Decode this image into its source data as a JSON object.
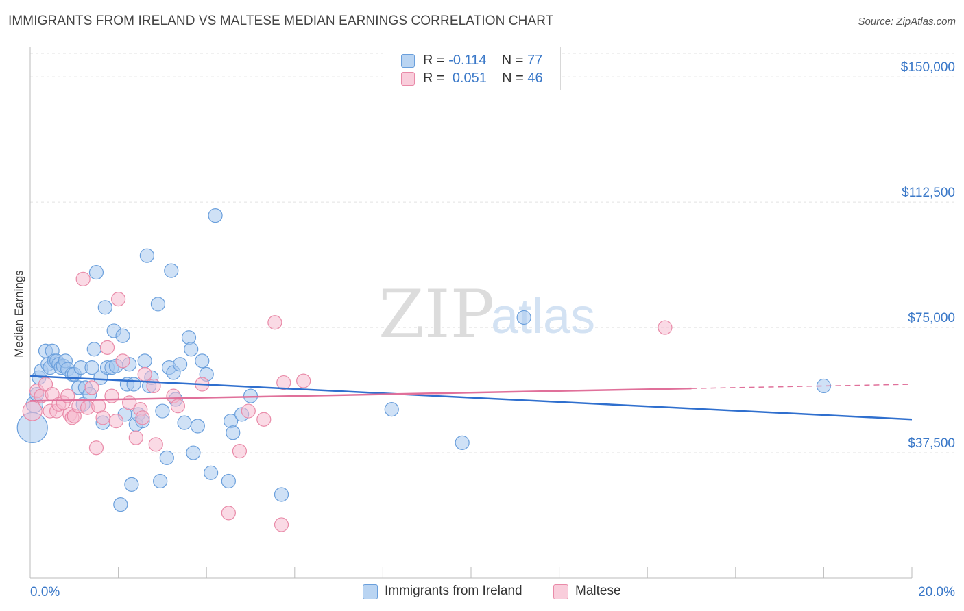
{
  "title": "IMMIGRANTS FROM IRELAND VS MALTESE MEDIAN EARNINGS CORRELATION CHART",
  "source": "Source: ZipAtlas.com",
  "watermark": {
    "zip": "ZIP",
    "atlas": "atlas"
  },
  "colors": {
    "blue_fill": "#a8c8ee",
    "blue_stroke": "#6a9fdc",
    "blue_line": "#2f6fce",
    "pink_fill": "#f6bcd0",
    "pink_stroke": "#e98aa8",
    "pink_line": "#e0709a",
    "tick_text": "#3a78c8",
    "grid": "#e2e2e2"
  },
  "legend": {
    "rows": [
      {
        "r_label": "R =",
        "r_value": "-0.114",
        "n_label": "N =",
        "n_value": "77"
      },
      {
        "r_label": "R =",
        "r_value": "0.051",
        "n_label": "N =",
        "n_value": "46"
      }
    ]
  },
  "bottom_legend": {
    "items": [
      {
        "label": "Immigrants from Ireland"
      },
      {
        "label": "Maltese"
      }
    ]
  },
  "chart_data": {
    "type": "scatter",
    "ylabel": "Median Earnings",
    "xlabel": "",
    "xlim": [
      0,
      20
    ],
    "ylim": [
      0,
      157000
    ],
    "x_tick_labels": [
      "0.0%",
      "20.0%"
    ],
    "y_ticks": [
      {
        "value": 37500,
        "label": "$37,500"
      },
      {
        "value": 75000,
        "label": "$75,000"
      },
      {
        "value": 112500,
        "label": "$112,500"
      },
      {
        "value": 150000,
        "label": "$150,000"
      }
    ],
    "grid": true,
    "legend_position": "top-center",
    "series": [
      {
        "name": "Immigrants from Ireland",
        "color": "#a8c8ee",
        "trend": {
          "x": [
            0,
            20
          ],
          "y": [
            60500,
            47500
          ],
          "solid_until": 20
        },
        "points": [
          [
            0.05,
            45000,
            22
          ],
          [
            0.1,
            52000,
            12
          ],
          [
            0.15,
            55000,
            10
          ],
          [
            0.2,
            60000,
            10
          ],
          [
            0.25,
            62000,
            10
          ],
          [
            0.35,
            68000,
            10
          ],
          [
            0.4,
            64000,
            10
          ],
          [
            0.45,
            63000,
            10
          ],
          [
            0.5,
            68000,
            10
          ],
          [
            0.55,
            65000,
            10
          ],
          [
            0.6,
            65000,
            10
          ],
          [
            0.65,
            64000,
            10
          ],
          [
            0.7,
            63000,
            10
          ],
          [
            0.75,
            63500,
            10
          ],
          [
            0.8,
            65000,
            10
          ],
          [
            0.85,
            62500,
            10
          ],
          [
            0.95,
            61000,
            10
          ],
          [
            1.0,
            61000,
            10
          ],
          [
            1.1,
            57000,
            10
          ],
          [
            1.15,
            63000,
            10
          ],
          [
            1.2,
            52000,
            10
          ],
          [
            1.25,
            57000,
            10
          ],
          [
            1.35,
            55000,
            10
          ],
          [
            1.4,
            63000,
            10
          ],
          [
            1.45,
            68500,
            10
          ],
          [
            1.5,
            91500,
            10
          ],
          [
            1.6,
            60000,
            10
          ],
          [
            1.65,
            46500,
            10
          ],
          [
            1.7,
            81000,
            10
          ],
          [
            1.75,
            63000,
            10
          ],
          [
            1.85,
            63000,
            10
          ],
          [
            1.9,
            74000,
            10
          ],
          [
            1.95,
            63500,
            10
          ],
          [
            2.05,
            22000,
            10
          ],
          [
            2.1,
            72500,
            10
          ],
          [
            2.15,
            49000,
            10
          ],
          [
            2.2,
            58000,
            10
          ],
          [
            2.25,
            64000,
            10
          ],
          [
            2.3,
            28000,
            10
          ],
          [
            2.35,
            58000,
            10
          ],
          [
            2.4,
            46000,
            10
          ],
          [
            2.45,
            49000,
            10
          ],
          [
            2.55,
            47000,
            10
          ],
          [
            2.6,
            65000,
            10
          ],
          [
            2.65,
            96500,
            10
          ],
          [
            2.7,
            57500,
            10
          ],
          [
            2.75,
            60000,
            10
          ],
          [
            2.9,
            82000,
            10
          ],
          [
            2.95,
            29000,
            10
          ],
          [
            3.0,
            50000,
            10
          ],
          [
            3.1,
            36000,
            10
          ],
          [
            3.15,
            63000,
            10
          ],
          [
            3.2,
            92000,
            10
          ],
          [
            3.25,
            61500,
            10
          ],
          [
            3.3,
            53500,
            10
          ],
          [
            3.4,
            64000,
            10
          ],
          [
            3.5,
            46500,
            10
          ],
          [
            3.6,
            72000,
            10
          ],
          [
            3.65,
            68500,
            10
          ],
          [
            3.7,
            37500,
            10
          ],
          [
            3.8,
            45500,
            10
          ],
          [
            3.9,
            65000,
            10
          ],
          [
            4.0,
            61000,
            10
          ],
          [
            4.1,
            31500,
            10
          ],
          [
            4.2,
            108500,
            10
          ],
          [
            4.5,
            29000,
            10
          ],
          [
            4.55,
            47000,
            10
          ],
          [
            4.6,
            43500,
            10
          ],
          [
            4.8,
            49000,
            10
          ],
          [
            5.0,
            54500,
            10
          ],
          [
            5.7,
            25000,
            10
          ],
          [
            8.2,
            50500,
            10
          ],
          [
            9.8,
            40500,
            10
          ],
          [
            11.2,
            78000,
            10
          ],
          [
            18.0,
            57500,
            10
          ]
        ]
      },
      {
        "name": "Maltese",
        "color": "#f6bcd0",
        "trend": {
          "x": [
            0,
            20
          ],
          "y": [
            53000,
            58000
          ],
          "solid_until": 15
        },
        "points": [
          [
            0.05,
            50000,
            14
          ],
          [
            0.15,
            56000,
            10
          ],
          [
            0.25,
            54500,
            10
          ],
          [
            0.35,
            58000,
            10
          ],
          [
            0.45,
            50000,
            10
          ],
          [
            0.5,
            55000,
            10
          ],
          [
            0.6,
            50000,
            10
          ],
          [
            0.65,
            52000,
            10
          ],
          [
            0.75,
            52500,
            10
          ],
          [
            0.85,
            54500,
            10
          ],
          [
            0.9,
            49000,
            10
          ],
          [
            0.95,
            48000,
            10
          ],
          [
            1.0,
            48500,
            10
          ],
          [
            1.1,
            51500,
            10
          ],
          [
            1.2,
            89500,
            10
          ],
          [
            1.3,
            51000,
            10
          ],
          [
            1.4,
            57000,
            10
          ],
          [
            1.5,
            39000,
            10
          ],
          [
            1.55,
            51500,
            10
          ],
          [
            1.65,
            48000,
            10
          ],
          [
            1.75,
            69000,
            10
          ],
          [
            1.85,
            54500,
            10
          ],
          [
            1.95,
            47000,
            10
          ],
          [
            2.0,
            83500,
            10
          ],
          [
            2.1,
            65000,
            10
          ],
          [
            2.25,
            52500,
            10
          ],
          [
            2.4,
            42000,
            10
          ],
          [
            2.5,
            50500,
            10
          ],
          [
            2.55,
            48000,
            10
          ],
          [
            2.6,
            61000,
            10
          ],
          [
            2.8,
            57500,
            10
          ],
          [
            2.85,
            40000,
            10
          ],
          [
            3.25,
            54500,
            10
          ],
          [
            3.35,
            51500,
            10
          ],
          [
            3.9,
            58000,
            10
          ],
          [
            4.5,
            19500,
            10
          ],
          [
            4.75,
            38000,
            10
          ],
          [
            4.95,
            50000,
            10
          ],
          [
            5.3,
            47500,
            10
          ],
          [
            5.55,
            76500,
            10
          ],
          [
            5.7,
            16000,
            10
          ],
          [
            5.75,
            58500,
            10
          ],
          [
            6.2,
            59000,
            10
          ],
          [
            14.4,
            75000,
            10
          ]
        ]
      }
    ]
  }
}
